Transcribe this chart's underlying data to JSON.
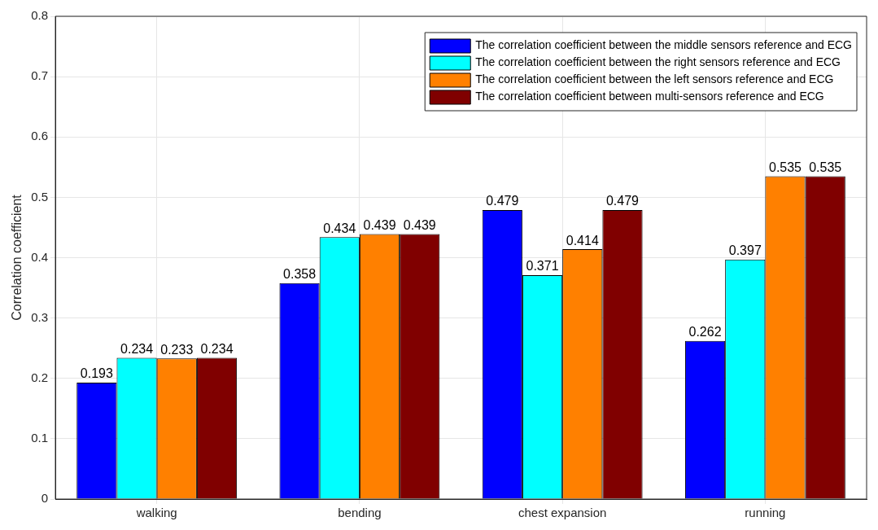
{
  "chart_data": {
    "type": "bar",
    "ylabel": "Correlation coefficient",
    "categories": [
      "walking",
      "bending",
      "chest expansion",
      "running"
    ],
    "series": [
      {
        "name": "The correlation coefficient between the middle sensors reference and ECG",
        "color": "#0000ff",
        "values": [
          0.193,
          0.358,
          0.479,
          0.262
        ]
      },
      {
        "name": "The correlation coefficient between the right sensors reference and ECG",
        "color": "#00ffff",
        "values": [
          0.234,
          0.434,
          0.371,
          0.397
        ]
      },
      {
        "name": "The correlation coefficient between the left sensors reference and ECG",
        "color": "#ff8000",
        "values": [
          0.233,
          0.439,
          0.414,
          0.535
        ]
      },
      {
        "name": "The correlation coefficient between multi-sensors reference and ECG",
        "color": "#800000",
        "values": [
          0.234,
          0.439,
          0.479,
          0.535
        ]
      }
    ],
    "ylim": [
      0,
      0.8
    ],
    "yticks": [
      0,
      0.1,
      0.2,
      0.3,
      0.4,
      0.5,
      0.6,
      0.7,
      0.8
    ],
    "grid": true,
    "legend": "top right",
    "data_labels": true
  }
}
